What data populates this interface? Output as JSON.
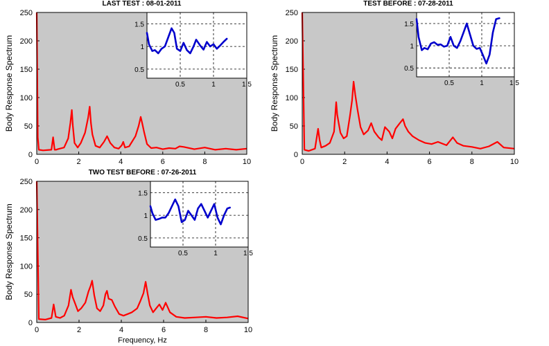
{
  "figure": {
    "xlabel": "Frequency, Hz",
    "colors": {
      "main_bg": "#c8c8c8",
      "main_line": "#ff0000",
      "inset_bg": "#ffffff",
      "inset_line": "#0000cc"
    }
  },
  "chart_data": [
    {
      "type": "line",
      "title": "LAST TEST : 08-01-2011",
      "xlabel": "",
      "ylabel": "Body Response Spectrum",
      "xlim": [
        0,
        10
      ],
      "ylim": [
        0,
        250
      ],
      "xticks": [
        "0",
        "2",
        "4",
        "6",
        "8",
        "10"
      ],
      "yticks": [
        "0",
        "50",
        "100",
        "150",
        "200",
        "250"
      ],
      "grid": false,
      "series": [
        {
          "x": [
            0,
            0.05,
            0.1,
            0.3,
            0.7,
            0.78,
            0.85,
            0.92,
            1.0,
            1.3,
            1.5,
            1.6,
            1.67,
            1.72,
            1.8,
            1.95,
            2.1,
            2.3,
            2.45,
            2.52,
            2.58,
            2.65,
            2.8,
            3.0,
            3.2,
            3.35,
            3.5,
            3.7,
            3.9,
            4.05,
            4.12,
            4.2,
            4.4,
            4.7,
            4.85,
            4.95,
            5.02,
            5.12,
            5.25,
            5.45,
            5.7,
            6.0,
            6.3,
            6.6,
            6.8,
            7.0,
            7.5,
            8.0,
            8.5,
            9.0,
            9.5,
            10.0
          ],
          "y": [
            250,
            30,
            8,
            7,
            8,
            30,
            8,
            8,
            9,
            12,
            28,
            55,
            78,
            50,
            20,
            12,
            20,
            38,
            65,
            84,
            55,
            35,
            15,
            12,
            22,
            32,
            20,
            12,
            10,
            16,
            22,
            12,
            14,
            32,
            50,
            66,
            55,
            38,
            18,
            11,
            12,
            9,
            11,
            10,
            14,
            13,
            9,
            12,
            8,
            10,
            8,
            10
          ]
        }
      ],
      "inset": {
        "xlim": [
          0,
          1.5
        ],
        "ylim": [
          0.3,
          1.75
        ],
        "xticks": [
          "0.5",
          "1",
          "1.5"
        ],
        "yticks": [
          "0.5",
          "1",
          "1.5"
        ],
        "grid": true,
        "series": [
          {
            "x": [
              0.0,
              0.03,
              0.08,
              0.12,
              0.17,
              0.22,
              0.27,
              0.32,
              0.37,
              0.41,
              0.45,
              0.5,
              0.55,
              0.6,
              0.65,
              0.7,
              0.74,
              0.8,
              0.85,
              0.9,
              0.95,
              1.0,
              1.05,
              1.1,
              1.15,
              1.2
            ],
            "y": [
              1.3,
              1.05,
              0.9,
              0.92,
              0.85,
              0.95,
              1.0,
              1.2,
              1.4,
              1.3,
              0.95,
              0.9,
              1.08,
              0.92,
              0.85,
              1.0,
              1.15,
              1.02,
              0.93,
              1.1,
              1.0,
              1.05,
              0.95,
              1.02,
              1.1,
              1.17
            ]
          }
        ]
      }
    },
    {
      "type": "line",
      "title": "TEST BEFORE : 07-28-2011",
      "xlabel": "",
      "ylabel": "Body Response Spectrum",
      "xlim": [
        0,
        10
      ],
      "ylim": [
        0,
        250
      ],
      "xticks": [
        "0",
        "2",
        "4",
        "6",
        "8",
        "10"
      ],
      "yticks": [
        "0",
        "50",
        "100",
        "150",
        "200",
        "250"
      ],
      "grid": false,
      "series": [
        {
          "x": [
            0,
            0.1,
            0.3,
            0.6,
            0.75,
            0.82,
            0.9,
            1.1,
            1.3,
            1.5,
            1.6,
            1.65,
            1.72,
            1.8,
            1.95,
            2.1,
            2.25,
            2.35,
            2.42,
            2.5,
            2.6,
            2.75,
            2.9,
            3.1,
            3.25,
            3.4,
            3.6,
            3.75,
            3.9,
            4.1,
            4.25,
            4.4,
            4.6,
            4.75,
            4.85,
            5.0,
            5.2,
            5.5,
            5.8,
            6.1,
            6.4,
            6.8,
            7.1,
            7.3,
            7.6,
            8.0,
            8.4,
            8.8,
            9.2,
            9.5,
            10.0
          ],
          "y": [
            250,
            8,
            6,
            10,
            45,
            25,
            12,
            15,
            20,
            40,
            92,
            70,
            55,
            38,
            28,
            32,
            68,
            95,
            128,
            105,
            80,
            48,
            35,
            42,
            55,
            40,
            30,
            25,
            48,
            40,
            28,
            45,
            55,
            62,
            50,
            40,
            32,
            25,
            20,
            18,
            22,
            16,
            30,
            20,
            15,
            13,
            10,
            14,
            22,
            12,
            10
          ]
        }
      ],
      "inset": {
        "xlim": [
          0,
          1.5
        ],
        "ylim": [
          0.3,
          1.75
        ],
        "xticks": [
          "0.5",
          "1",
          "1.5"
        ],
        "yticks": [
          "0.5",
          "1",
          "1.5"
        ],
        "grid": true,
        "series": [
          {
            "x": [
              0.0,
              0.03,
              0.08,
              0.12,
              0.17,
              0.22,
              0.27,
              0.32,
              0.37,
              0.42,
              0.47,
              0.52,
              0.57,
              0.62,
              0.67,
              0.72,
              0.77,
              0.82,
              0.87,
              0.92,
              0.97,
              1.02,
              1.07,
              1.12,
              1.17,
              1.22,
              1.27
            ],
            "y": [
              1.6,
              1.2,
              0.9,
              0.95,
              0.92,
              1.05,
              1.08,
              1.02,
              1.03,
              0.98,
              1.0,
              1.2,
              1.0,
              0.95,
              1.1,
              1.3,
              1.5,
              1.25,
              1.0,
              0.93,
              0.95,
              0.78,
              0.6,
              0.8,
              1.3,
              1.6,
              1.62
            ]
          }
        ]
      }
    },
    {
      "type": "line",
      "title": "TWO TEST BEFORE : 07-26-2011",
      "xlabel": "Frequency, Hz",
      "ylabel": "Body Response Spectrum",
      "xlim": [
        0,
        10
      ],
      "ylim": [
        0,
        250
      ],
      "xticks": [
        "0",
        "2",
        "4",
        "6",
        "8",
        "10"
      ],
      "yticks": [
        "0",
        "50",
        "100",
        "150",
        "200",
        "250"
      ],
      "grid": false,
      "series": [
        {
          "x": [
            0,
            0.1,
            0.4,
            0.7,
            0.8,
            0.9,
            1.1,
            1.3,
            1.5,
            1.62,
            1.7,
            1.8,
            1.95,
            2.1,
            2.3,
            2.45,
            2.55,
            2.62,
            2.72,
            2.85,
            3.0,
            3.15,
            3.25,
            3.32,
            3.4,
            3.55,
            3.7,
            3.9,
            4.1,
            4.3,
            4.5,
            4.75,
            4.9,
            5.05,
            5.15,
            5.25,
            5.35,
            5.5,
            5.65,
            5.8,
            5.95,
            6.1,
            6.3,
            6.6,
            7.0,
            7.5,
            8.0,
            8.5,
            9.0,
            9.5,
            10.0
          ],
          "y": [
            250,
            6,
            5,
            8,
            32,
            10,
            8,
            12,
            30,
            58,
            45,
            35,
            20,
            25,
            35,
            55,
            65,
            74,
            48,
            25,
            20,
            30,
            50,
            56,
            42,
            40,
            28,
            15,
            12,
            15,
            18,
            25,
            38,
            52,
            72,
            50,
            30,
            18,
            25,
            32,
            22,
            35,
            18,
            10,
            8,
            9,
            10,
            8,
            9,
            11,
            7
          ]
        }
      ],
      "inset": {
        "xlim": [
          0,
          1.5
        ],
        "ylim": [
          0.3,
          1.75
        ],
        "xticks": [
          "0.5",
          "1",
          "1.5"
        ],
        "yticks": [
          "0.5",
          "1",
          "1.5"
        ],
        "grid": true,
        "series": [
          {
            "x": [
              0.0,
              0.03,
              0.08,
              0.13,
              0.18,
              0.23,
              0.28,
              0.33,
              0.38,
              0.43,
              0.48,
              0.53,
              0.58,
              0.63,
              0.68,
              0.73,
              0.78,
              0.83,
              0.88,
              0.93,
              0.98,
              1.03,
              1.08,
              1.13,
              1.18,
              1.22
            ],
            "y": [
              1.2,
              1.05,
              0.9,
              0.92,
              0.95,
              0.95,
              1.05,
              1.2,
              1.35,
              1.2,
              0.85,
              0.9,
              1.1,
              1.0,
              0.9,
              1.15,
              1.25,
              1.1,
              0.95,
              1.1,
              1.25,
              0.95,
              0.8,
              1.0,
              1.15,
              1.17
            ]
          }
        ]
      }
    }
  ]
}
